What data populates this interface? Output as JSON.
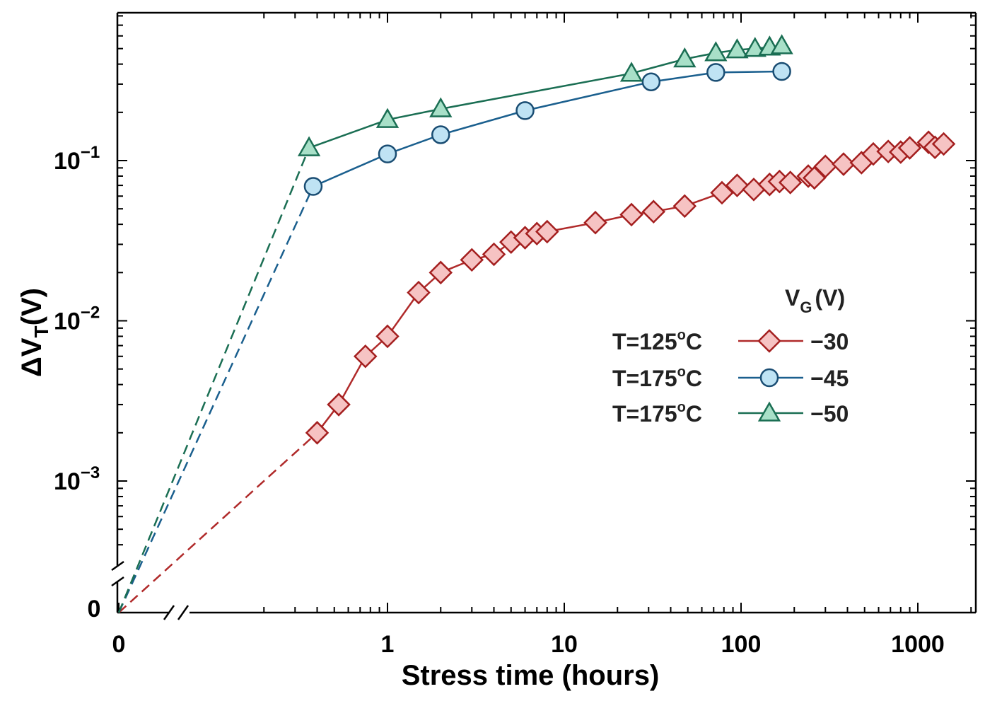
{
  "chart_data": {
    "type": "line",
    "xlabel": "Stress time (hours)",
    "ylabel": "ΔV_T(V)",
    "xscale": "log",
    "yscale": "log",
    "xlim": [
      0.13,
      2000
    ],
    "ylim": [
      0.0004,
      0.8
    ],
    "x_ticks": [
      {
        "value": 1,
        "label": "1"
      },
      {
        "value": 10,
        "label": "10"
      },
      {
        "value": 100,
        "label": "100"
      },
      {
        "value": 1000,
        "label": "1000"
      }
    ],
    "x_zero_label": "0",
    "y_zero_label": "0",
    "y_ticks": [
      {
        "value": 0.1,
        "base": "10",
        "exp": "−1"
      },
      {
        "value": 0.01,
        "base": "10",
        "exp": "−2"
      },
      {
        "value": 0.001,
        "base": "10",
        "exp": "−3"
      }
    ],
    "legend": {
      "title_main": "V",
      "title_sub": "G",
      "title_unit": "(V)",
      "placement": "center-right",
      "entries": [
        {
          "temp": "T=125",
          "sup": "o",
          "unit": "C",
          "vg": "−30"
        },
        {
          "temp": "T=175",
          "sup": "o",
          "unit": "C",
          "vg": "−45"
        },
        {
          "temp": "T=175",
          "sup": "o",
          "unit": "C",
          "vg": "−50"
        }
      ]
    },
    "series": [
      {
        "name": "T=125°C, VG=−30",
        "marker": "diamond",
        "line_color": "#b02a2a",
        "fill_color": "#f6c3c3",
        "edge_color": "#a41f1f",
        "x": [
          0.4,
          0.53,
          0.75,
          1.0,
          1.5,
          2.0,
          3.0,
          4.0,
          5.0,
          6.0,
          7.0,
          8.0,
          15,
          24,
          32,
          48,
          78,
          95,
          118,
          145,
          165,
          190,
          240,
          260,
          300,
          380,
          480,
          560,
          680,
          800,
          900,
          1150,
          1250,
          1400
        ],
        "y": [
          0.002,
          0.003,
          0.006,
          0.008,
          0.015,
          0.02,
          0.024,
          0.026,
          0.031,
          0.033,
          0.035,
          0.036,
          0.041,
          0.046,
          0.048,
          0.052,
          0.063,
          0.07,
          0.066,
          0.071,
          0.074,
          0.073,
          0.08,
          0.078,
          0.092,
          0.095,
          0.097,
          0.11,
          0.114,
          0.113,
          0.12,
          0.13,
          0.121,
          0.127
        ]
      },
      {
        "name": "T=175°C, VG=−45",
        "marker": "circle",
        "line_color": "#1a5f8e",
        "fill_color": "#bfe3f4",
        "edge_color": "#1a4d73",
        "x": [
          0.38,
          1.0,
          2.0,
          6.0,
          31,
          72,
          170
        ],
        "y": [
          0.069,
          0.11,
          0.145,
          0.205,
          0.31,
          0.355,
          0.36
        ]
      },
      {
        "name": "T=175°C, VG=−50",
        "marker": "triangle",
        "line_color": "#1a6e53",
        "fill_color": "#a8e0c8",
        "edge_color": "#1a6e53",
        "x": [
          0.36,
          1.0,
          2.0,
          24,
          48,
          72,
          95,
          120,
          145,
          170
        ],
        "y": [
          0.12,
          0.18,
          0.21,
          0.35,
          0.43,
          0.47,
          0.49,
          0.5,
          0.51,
          0.52
        ]
      }
    ]
  }
}
